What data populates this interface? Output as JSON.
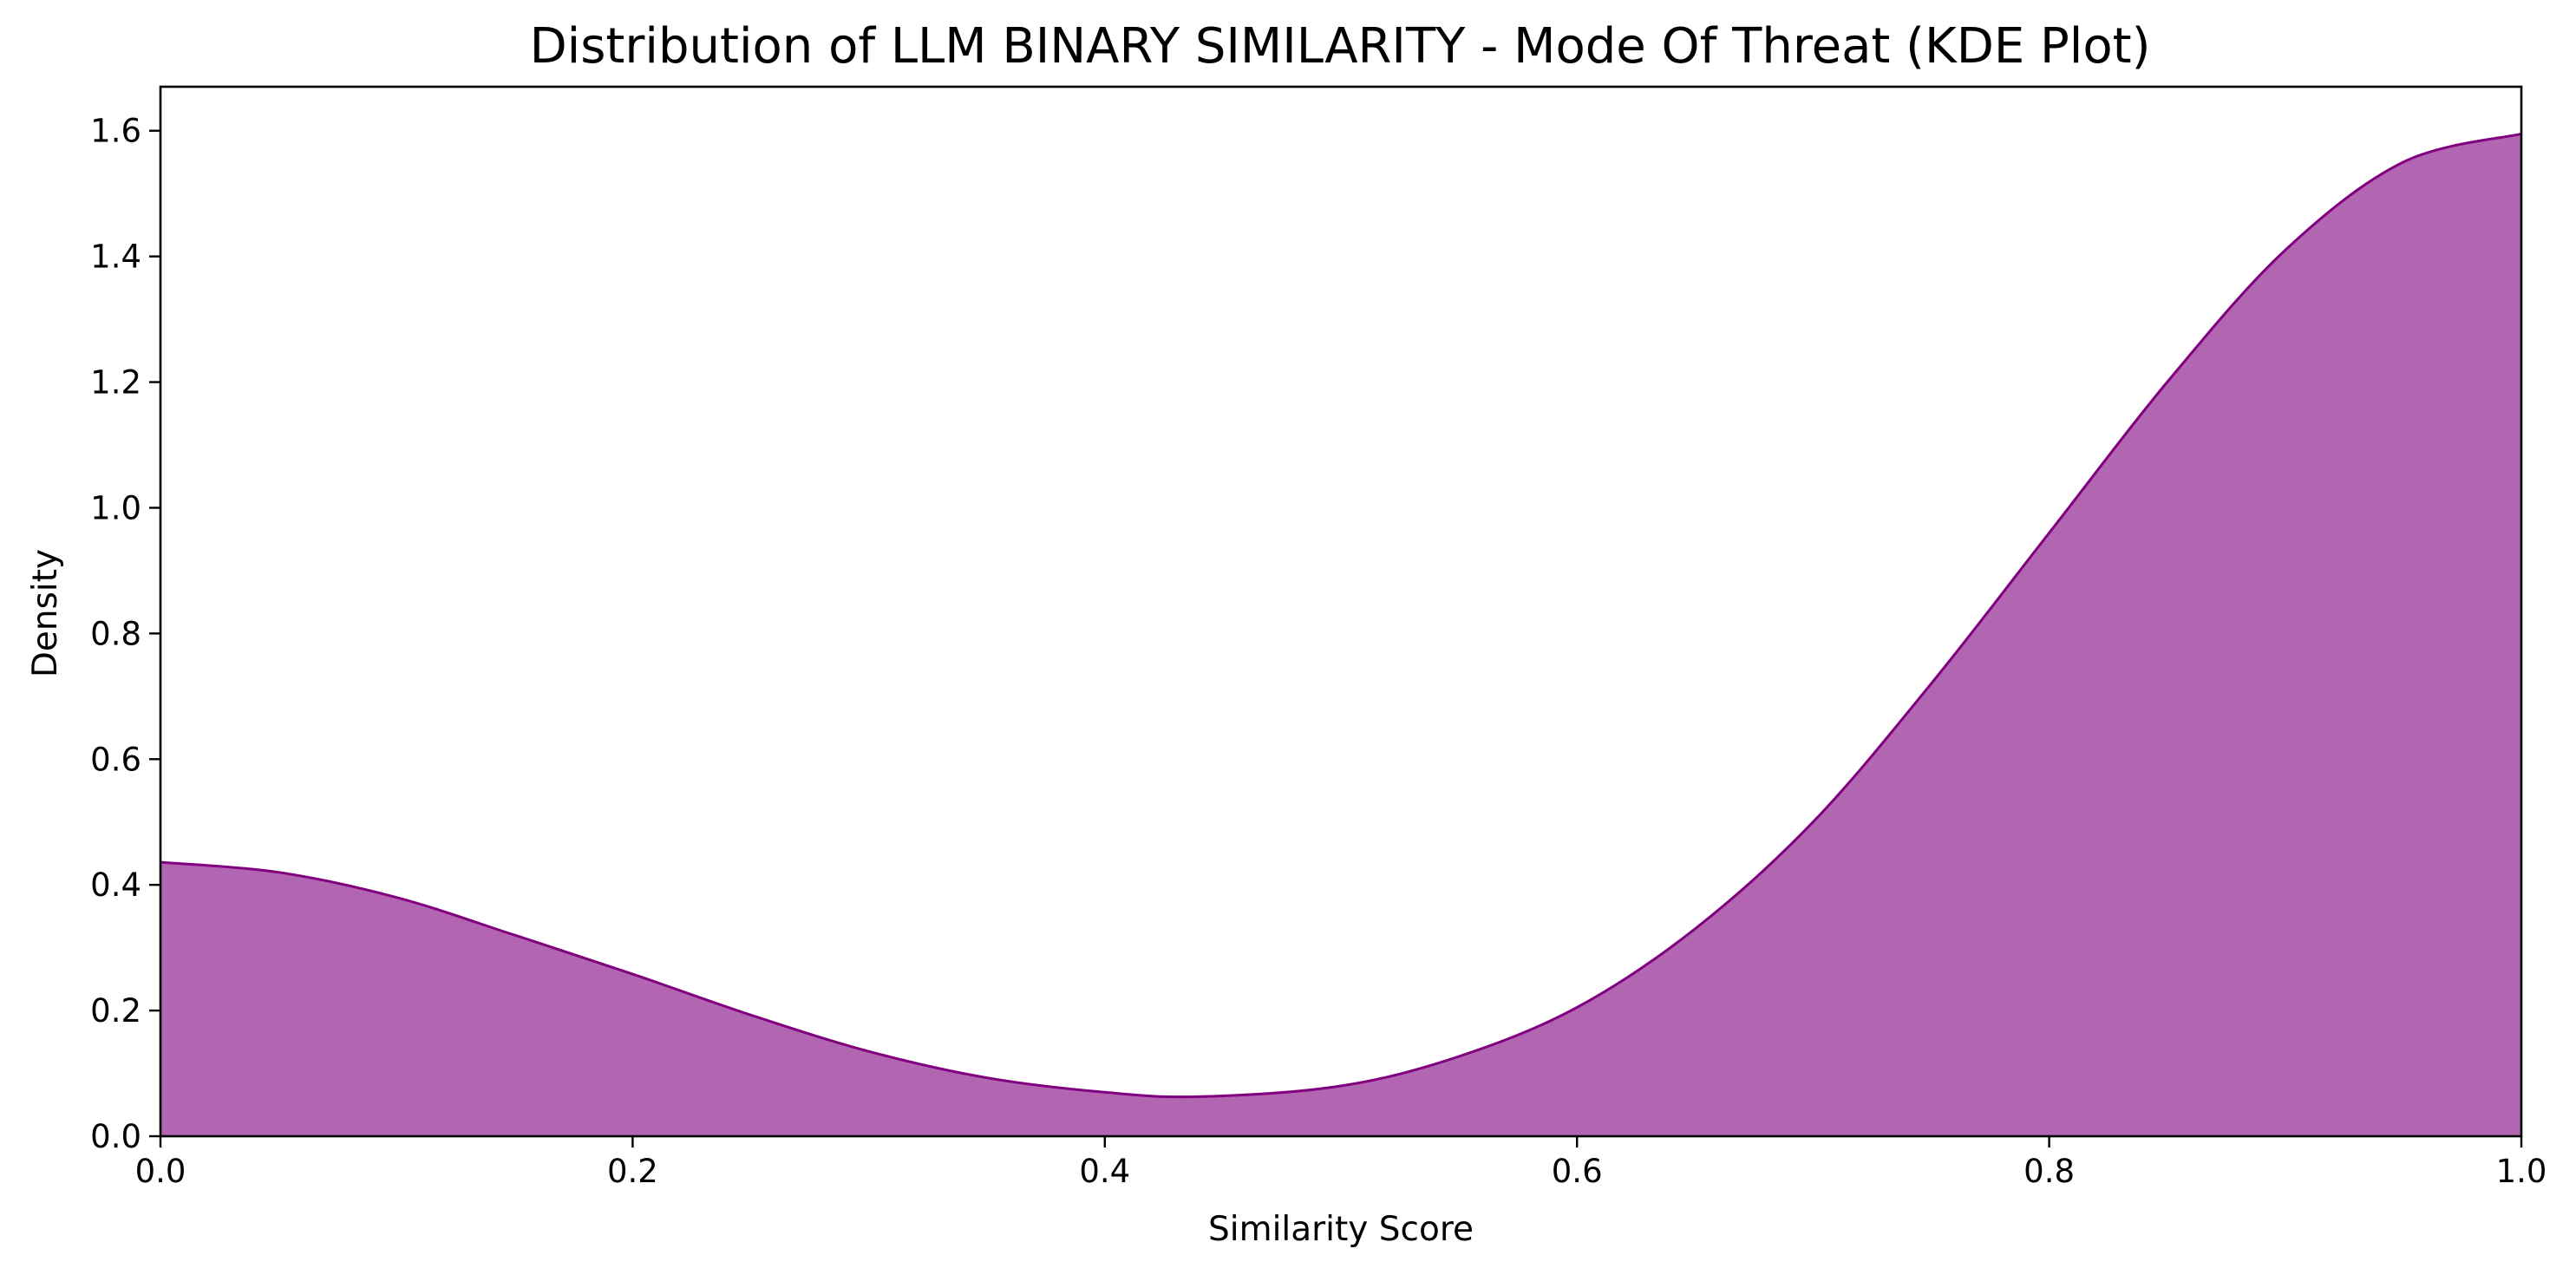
{
  "chart_data": {
    "type": "area",
    "title": "Distribution of LLM BINARY SIMILARITY - Mode Of Threat (KDE Plot)",
    "xlabel": "Similarity Score",
    "ylabel": "Density",
    "xlim": [
      0.0,
      1.0
    ],
    "ylim": [
      0.0,
      1.67
    ],
    "x_ticks": [
      0.0,
      0.2,
      0.4,
      0.6,
      0.8,
      1.0
    ],
    "x_tick_labels": [
      "0.0",
      "0.2",
      "0.4",
      "0.6",
      "0.8",
      "1.0"
    ],
    "y_ticks": [
      0.0,
      0.2,
      0.4,
      0.6,
      0.8,
      1.0,
      1.2,
      1.4,
      1.6
    ],
    "y_tick_labels": [
      "0.0",
      "0.2",
      "0.4",
      "0.6",
      "0.8",
      "1.0",
      "1.2",
      "1.4",
      "1.6"
    ],
    "grid": false,
    "colors": {
      "fill": "#b266b2",
      "line": "#800080"
    },
    "series": [
      {
        "x": [
          0.0,
          0.05,
          0.1,
          0.15,
          0.2,
          0.25,
          0.3,
          0.35,
          0.4,
          0.44,
          0.5,
          0.55,
          0.6,
          0.65,
          0.7,
          0.75,
          0.8,
          0.85,
          0.9,
          0.95,
          1.0
        ],
        "y": [
          0.436,
          0.42,
          0.38,
          0.32,
          0.258,
          0.193,
          0.135,
          0.093,
          0.07,
          0.063,
          0.08,
          0.127,
          0.205,
          0.33,
          0.5,
          0.72,
          0.96,
          1.2,
          1.41,
          1.55,
          1.595
        ]
      }
    ]
  }
}
